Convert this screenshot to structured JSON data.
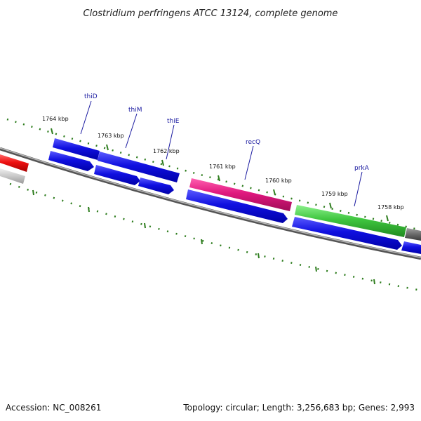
{
  "title": "Clostridium perfringens ATCC 13124, complete genome",
  "footer": {
    "accession": "Accession: NC_008261",
    "summary": "Topology: circular; Length: 3,256,683 bp; Genes: 2,993"
  },
  "ticks": {
    "labels": [
      "1764 kbp",
      "1763 kbp",
      "1762 kbp",
      "1761 kbp",
      "1760 kbp",
      "1759 kbp",
      "1758 kbp"
    ],
    "color": "#2e7d1e"
  },
  "gene_labels": [
    "thiD",
    "thiM",
    "thiE",
    "recQ",
    "prkA"
  ],
  "colors": {
    "cds_blue": "#1010e0",
    "recq_pink": "#e0187e",
    "prka_green": "#3fc63f",
    "red_feature": "#ee1111",
    "grey_feature": "#8a8a8a",
    "backbone": "#7a7a7a",
    "label_blue": "#1a1aa0"
  }
}
